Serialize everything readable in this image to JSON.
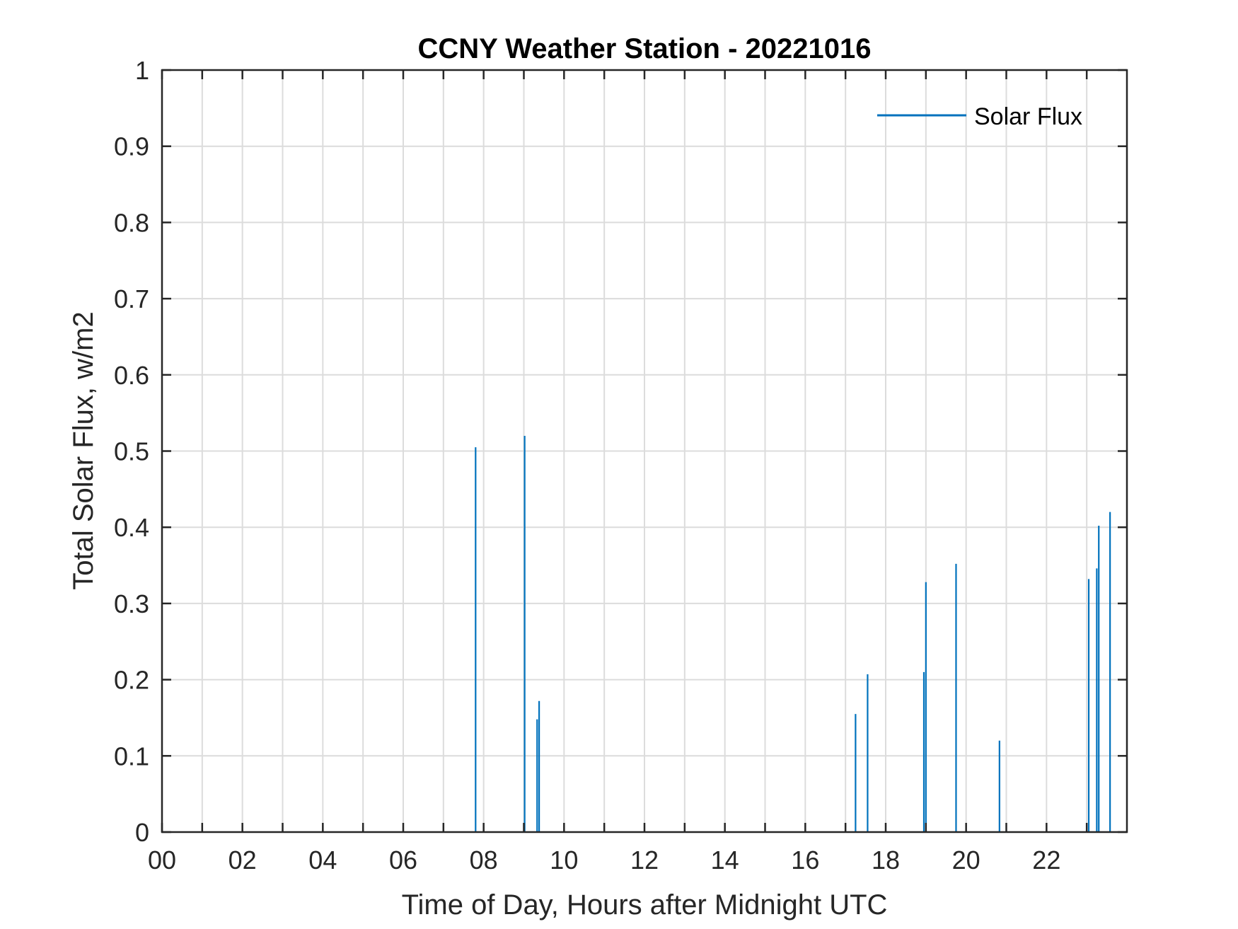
{
  "chart_data": {
    "type": "line",
    "title": "CCNY Weather Station - 20221016",
    "xlabel": "Time of Day, Hours after Midnight UTC",
    "ylabel": "Total Solar Flux, w/m2",
    "xlim": [
      0,
      24
    ],
    "ylim": [
      0,
      1
    ],
    "grid": true,
    "legend_position": "top-right",
    "x_ticks": [
      0,
      2,
      4,
      6,
      8,
      10,
      12,
      14,
      16,
      18,
      20,
      22
    ],
    "x_tick_labels": [
      "00",
      "02",
      "04",
      "06",
      "08",
      "10",
      "12",
      "14",
      "16",
      "18",
      "20",
      "22"
    ],
    "y_ticks": [
      0,
      0.1,
      0.2,
      0.3,
      0.4,
      0.5,
      0.6,
      0.7,
      0.8,
      0.9,
      1
    ],
    "y_tick_labels": [
      "0",
      "0.1",
      "0.2",
      "0.3",
      "0.4",
      "0.5",
      "0.6",
      "0.7",
      "0.8",
      "0.9",
      "1"
    ],
    "series": [
      {
        "name": "Solar Flux",
        "color": "#0072BD",
        "spikes": [
          {
            "x": 7.8,
            "y": 0.505
          },
          {
            "x": 9.02,
            "y": 0.52
          },
          {
            "x": 9.33,
            "y": 0.148
          },
          {
            "x": 9.38,
            "y": 0.172
          },
          {
            "x": 17.25,
            "y": 0.155
          },
          {
            "x": 17.55,
            "y": 0.207
          },
          {
            "x": 18.95,
            "y": 0.21
          },
          {
            "x": 19.0,
            "y": 0.328
          },
          {
            "x": 19.75,
            "y": 0.352
          },
          {
            "x": 20.83,
            "y": 0.12
          },
          {
            "x": 23.05,
            "y": 0.332
          },
          {
            "x": 23.25,
            "y": 0.346
          },
          {
            "x": 23.3,
            "y": 0.402
          },
          {
            "x": 23.58,
            "y": 0.42
          }
        ]
      }
    ]
  }
}
